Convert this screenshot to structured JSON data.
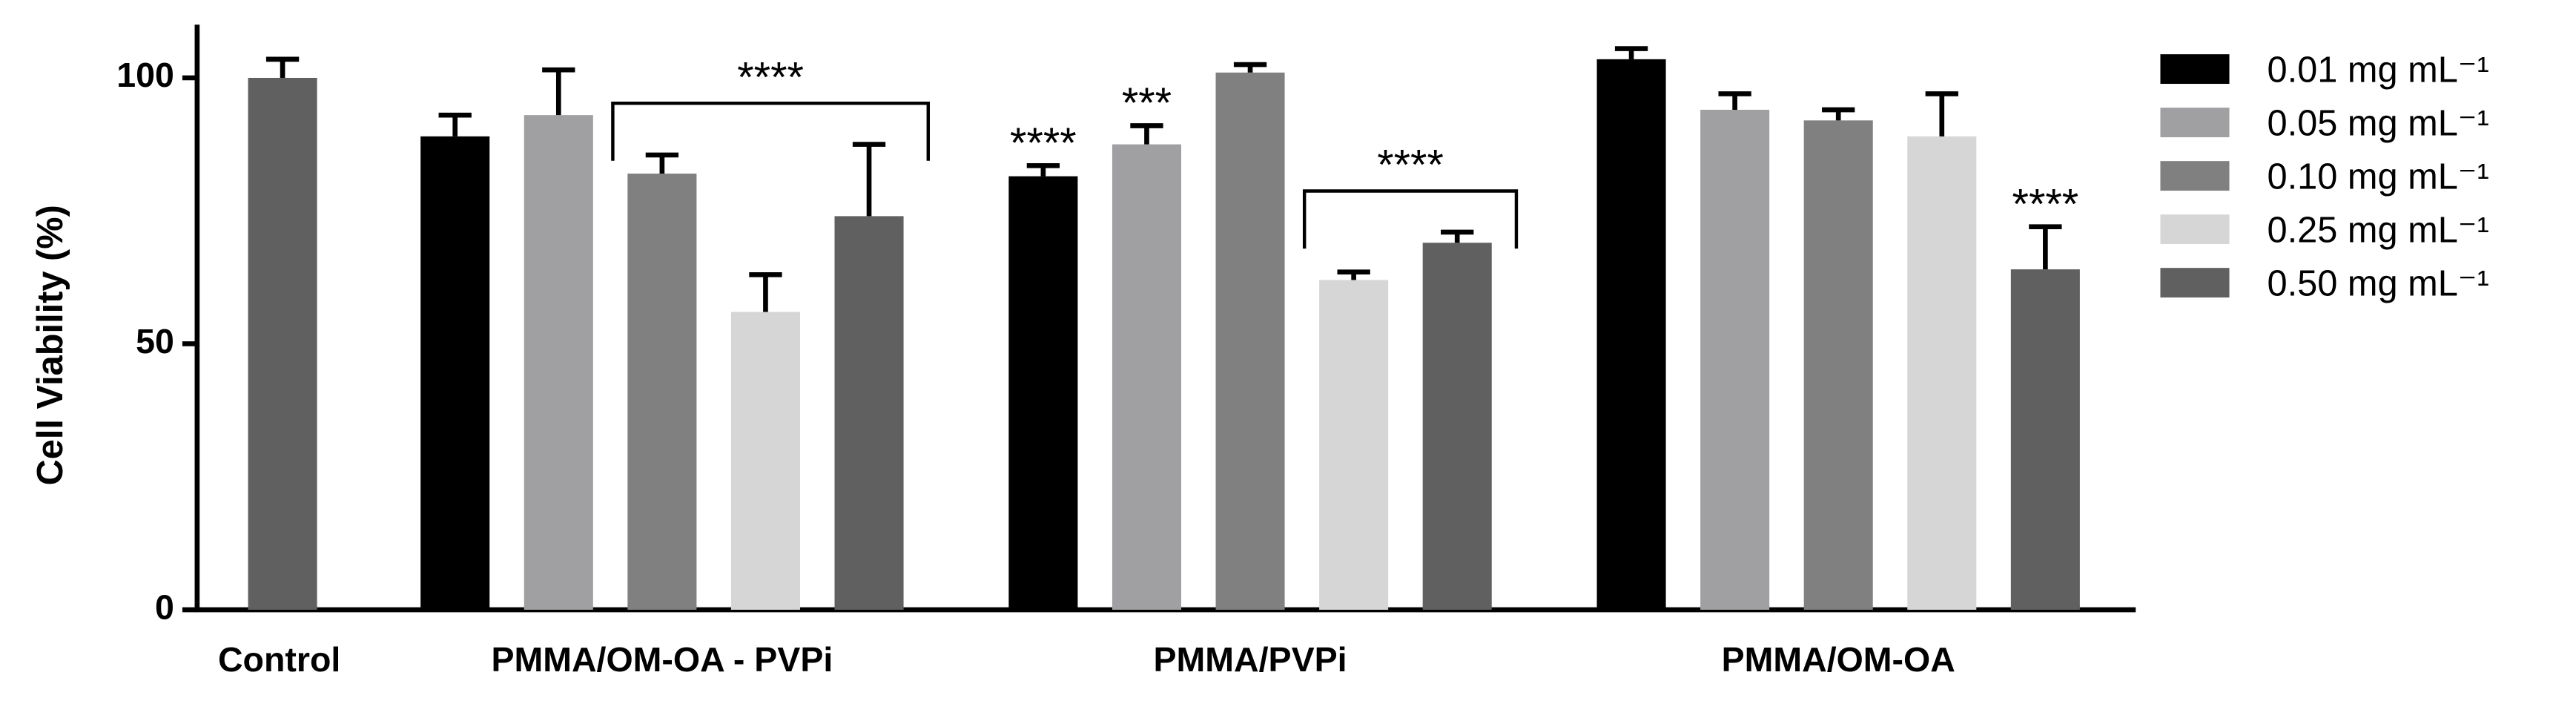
{
  "chart_data": {
    "type": "bar",
    "y_label": "Cell Viability (%)",
    "categories": [
      "Control",
      "PMMA/OM-OA - PVPi",
      "PMMA/PVPi",
      "PMMA/OM-OA"
    ],
    "control": {
      "value": 100,
      "error": 3.5,
      "color": "#606060"
    },
    "series": [
      {
        "name": "0.01 mg mL⁻¹",
        "color": "#000000",
        "values": [
          null,
          89,
          81.5,
          103.5
        ],
        "errors": [
          null,
          4,
          2,
          2
        ]
      },
      {
        "name": "0.05 mg mL⁻¹",
        "color": "#a0a0a3",
        "values": [
          null,
          93,
          87.5,
          94
        ],
        "errors": [
          null,
          8.5,
          3.5,
          3
        ]
      },
      {
        "name": "0.10 mg mL⁻¹",
        "color": "#808080",
        "values": [
          null,
          82,
          101,
          92
        ],
        "errors": [
          null,
          3.5,
          1.5,
          2
        ]
      },
      {
        "name": "0.25 mg mL⁻¹",
        "color": "#d6d6d6",
        "values": [
          null,
          56,
          62,
          89
        ],
        "errors": [
          null,
          7,
          1.5,
          8
        ]
      },
      {
        "name": "0.50 mg mL⁻¹",
        "color": "#606060",
        "values": [
          null,
          74,
          69,
          64
        ],
        "errors": [
          null,
          13.5,
          2,
          8
        ]
      }
    ],
    "annotations": [
      {
        "text": "****",
        "category": 1,
        "series": [
          2,
          4
        ]
      },
      {
        "text": "****",
        "category": 2,
        "series": [
          0
        ]
      },
      {
        "text": "***",
        "category": 2,
        "series": [
          1
        ]
      },
      {
        "text": "****",
        "category": 2,
        "series": [
          3,
          4
        ]
      },
      {
        "text": "****",
        "category": 3,
        "series": [
          4
        ]
      }
    ],
    "ylim": [
      0,
      110
    ],
    "yticks": [
      0,
      50,
      100
    ],
    "legend": "right"
  }
}
